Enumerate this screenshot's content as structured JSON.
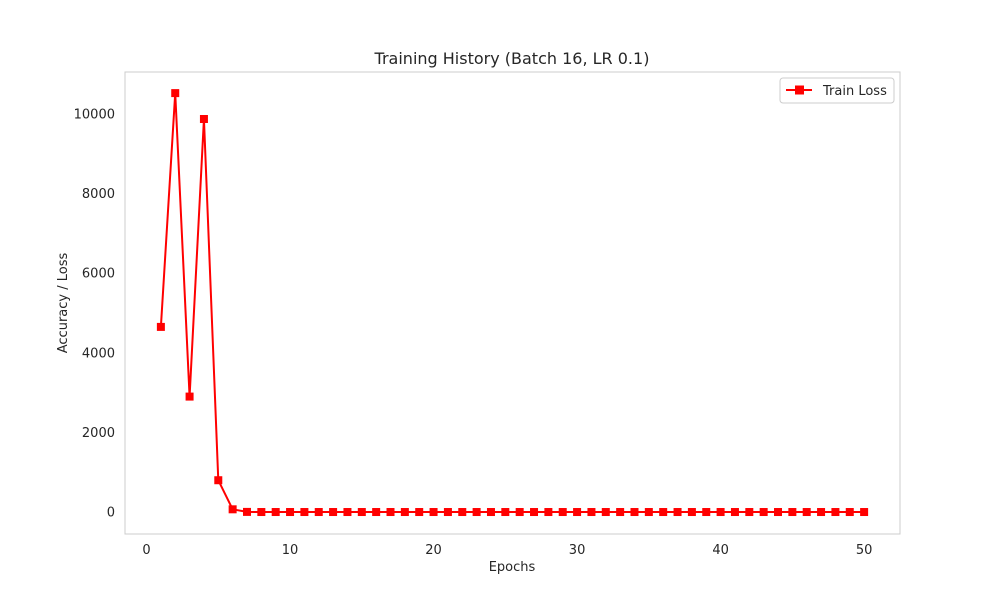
{
  "chart_data": {
    "type": "line",
    "title": "Training History (Batch 16, LR 0.1)",
    "xlabel": "Epochs",
    "ylabel": "Accuracy / Loss",
    "xlim": [
      -1.5,
      52.5
    ],
    "ylim": [
      -550,
      11050
    ],
    "xticks": [
      0,
      10,
      20,
      30,
      40,
      50
    ],
    "yticks": [
      0,
      2000,
      4000,
      6000,
      8000,
      10000
    ],
    "grid": false,
    "legend_position": "top-right",
    "series": [
      {
        "name": "Train Loss",
        "color": "#ff0000",
        "marker": "square",
        "x": [
          1,
          2,
          3,
          4,
          5,
          6,
          7,
          8,
          9,
          10,
          11,
          12,
          13,
          14,
          15,
          16,
          17,
          18,
          19,
          20,
          21,
          22,
          23,
          24,
          25,
          26,
          27,
          28,
          29,
          30,
          31,
          32,
          33,
          34,
          35,
          36,
          37,
          38,
          39,
          40,
          41,
          42,
          43,
          44,
          45,
          46,
          47,
          48,
          49,
          50
        ],
        "y": [
          4650,
          10520,
          2900,
          9870,
          800,
          70,
          5,
          2,
          2,
          2,
          2,
          2,
          2,
          2,
          2,
          2,
          2,
          2,
          2,
          2,
          2,
          2,
          2,
          2,
          2,
          2,
          2,
          2,
          2,
          2,
          2,
          2,
          2,
          2,
          2,
          2,
          2,
          2,
          2,
          2,
          2,
          2,
          2,
          2,
          2,
          2,
          2,
          2,
          2,
          2
        ]
      }
    ]
  }
}
